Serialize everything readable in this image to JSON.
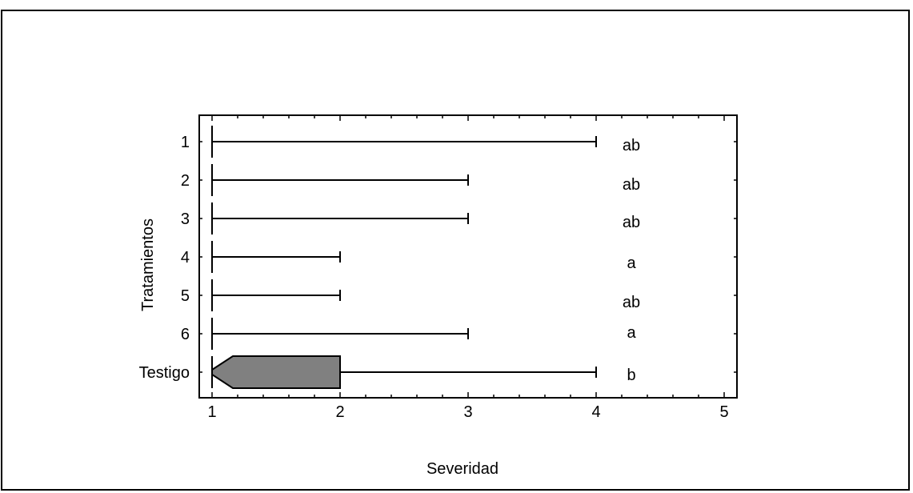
{
  "chart_data": {
    "type": "box",
    "orientation": "horizontal",
    "xlabel": "Severidad",
    "ylabel": "Tratamientos",
    "xlim": [
      1,
      5
    ],
    "xticks": [
      1,
      2,
      3,
      4,
      5
    ],
    "x_minor_step": 0.2,
    "categories": [
      "1",
      "2",
      "3",
      "4",
      "5",
      "6",
      "Testigo"
    ],
    "boxes": [
      {
        "category": "1",
        "min": 1,
        "q1": 1,
        "median": 1,
        "q3": 1,
        "max": 4,
        "letter": "ab"
      },
      {
        "category": "2",
        "min": 1,
        "q1": 1,
        "median": 1,
        "q3": 1,
        "max": 3,
        "letter": "ab"
      },
      {
        "category": "3",
        "min": 1,
        "q1": 1,
        "median": 1,
        "q3": 1,
        "max": 3,
        "letter": "ab"
      },
      {
        "category": "4",
        "min": 1,
        "q1": 1,
        "median": 1,
        "q3": 1,
        "max": 2,
        "letter": "a"
      },
      {
        "category": "5",
        "min": 1,
        "q1": 1,
        "median": 1,
        "q3": 1,
        "max": 2,
        "letter": "ab"
      },
      {
        "category": "6",
        "min": 1,
        "q1": 1,
        "median": 1,
        "q3": 1,
        "max": 3,
        "letter": "a"
      },
      {
        "category": "Testigo",
        "min": 1,
        "q1": 1,
        "median": 1,
        "q3": 2,
        "max": 4,
        "letter": "b",
        "notched": true
      }
    ],
    "box_fill": "#808080",
    "line_color": "#000000",
    "grid": false
  }
}
